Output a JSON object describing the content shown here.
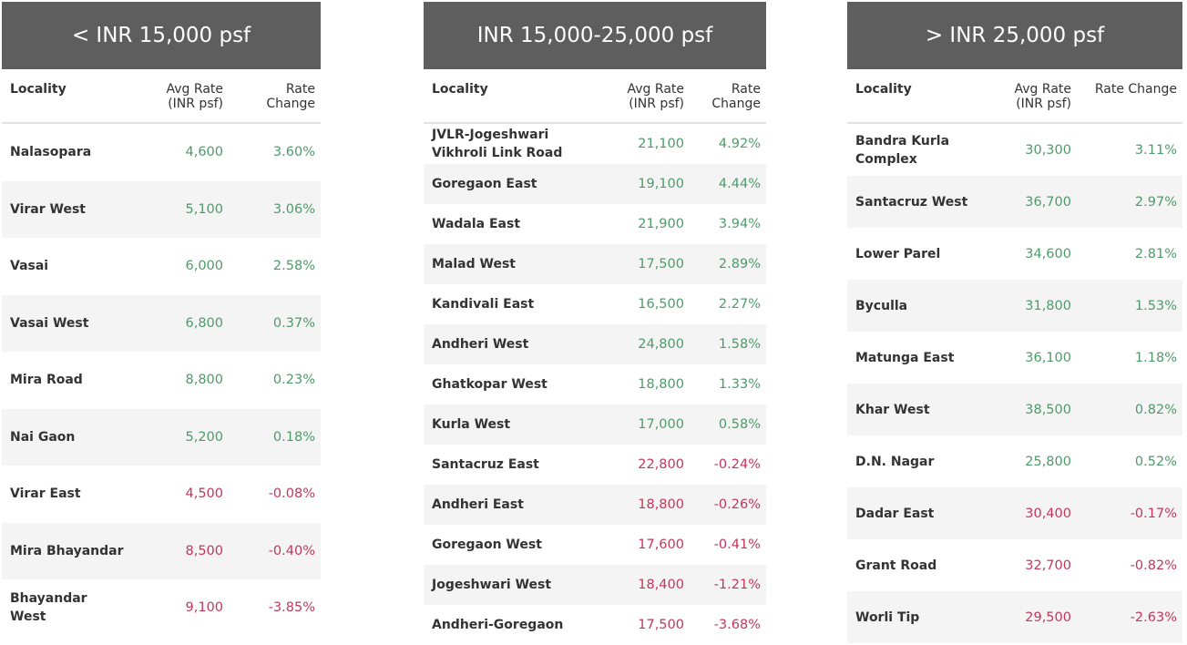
{
  "colors": {
    "header_bg": "#5e5e5e",
    "positive": "#4e9a6a",
    "negative": "#c3365a"
  },
  "panels": [
    {
      "title": "< INR 15,000 psf",
      "columns": [
        "Locality",
        "Avg Rate\n(INR psf)",
        "Rate\nChange"
      ],
      "rows": [
        [
          "Nalasopara",
          "4,600",
          "3.60%"
        ],
        [
          "Virar West",
          "5,100",
          "3.06%"
        ],
        [
          "Vasai",
          "6,000",
          "2.58%"
        ],
        [
          "Vasai West",
          "6,800",
          "0.37%"
        ],
        [
          "Mira Road",
          "8,800",
          "0.23%"
        ],
        [
          "Nai Gaon",
          "5,200",
          "0.18%"
        ],
        [
          "Virar East",
          "4,500",
          "-0.08%"
        ],
        [
          "Mira Bhayandar",
          "8,500",
          "-0.40%"
        ],
        [
          "Bhayandar West",
          "9,100",
          "-3.85%"
        ]
      ]
    },
    {
      "title": "INR 15,000-25,000 psf",
      "columns": [
        "Locality",
        "Avg Rate\n(INR psf)",
        "Rate\nChange"
      ],
      "rows": [
        [
          "JVLR-Jogeshwari Vikhroli Link Road",
          "21,100",
          "4.92%"
        ],
        [
          "Goregaon East",
          "19,100",
          "4.44%"
        ],
        [
          "Wadala East",
          "21,900",
          "3.94%"
        ],
        [
          "Malad West",
          "17,500",
          "2.89%"
        ],
        [
          "Kandivali East",
          "16,500",
          "2.27%"
        ],
        [
          "Andheri West",
          "24,800",
          "1.58%"
        ],
        [
          "Ghatkopar West",
          "18,800",
          "1.33%"
        ],
        [
          "Kurla West",
          "17,000",
          "0.58%"
        ],
        [
          "Santacruz East",
          "22,800",
          "-0.24%"
        ],
        [
          "Andheri East",
          "18,800",
          "-0.26%"
        ],
        [
          "Goregaon West",
          "17,600",
          "-0.41%"
        ],
        [
          "Jogeshwari West",
          "18,400",
          "-1.21%"
        ],
        [
          "Andheri-Goregaon",
          "17,500",
          "-3.68%"
        ]
      ]
    },
    {
      "title": "> INR 25,000 psf",
      "columns": [
        "Locality",
        "Avg Rate\n(INR psf)",
        "Rate Change"
      ],
      "rows": [
        [
          "Bandra Kurla Complex",
          "30,300",
          "3.11%"
        ],
        [
          "Santacruz West",
          "36,700",
          "2.97%"
        ],
        [
          "Lower Parel",
          "34,600",
          "2.81%"
        ],
        [
          "Byculla",
          "31,800",
          "1.53%"
        ],
        [
          "Matunga East",
          "36,100",
          "1.18%"
        ],
        [
          "Khar West",
          "38,500",
          "0.82%"
        ],
        [
          "D.N. Nagar",
          "25,800",
          "0.52%"
        ],
        [
          "Dadar East",
          "30,400",
          "-0.17%"
        ],
        [
          "Grant Road",
          "32,700",
          "-0.82%"
        ],
        [
          "Worli Tip",
          "29,500",
          "-2.63%"
        ]
      ]
    }
  ]
}
